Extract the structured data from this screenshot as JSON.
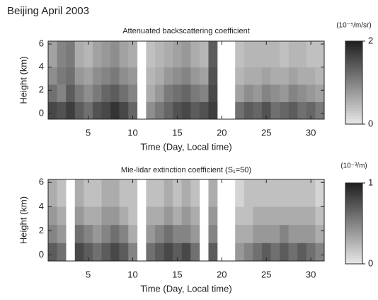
{
  "figure_title": "Beijing   April 2003",
  "chart_data": [
    {
      "type": "heatmap",
      "title": "Attenuated backscattering coefficient",
      "x_label": "Time (Day, Local time)",
      "y_label": "Height (km)",
      "colorbar_label": "(10⁻⁵/m/sr)",
      "xlim": [
        0.5,
        31.5
      ],
      "xticks": [
        5,
        10,
        15,
        20,
        25,
        30
      ],
      "ylim": [
        -0.5,
        6.25
      ],
      "yticks": [
        0,
        2,
        4,
        6
      ],
      "clim": [
        0,
        2
      ],
      "cticks": [
        0,
        2
      ],
      "xbins": [
        0.5,
        1.5,
        2.5,
        3.5,
        4.5,
        5.5,
        6.5,
        7.5,
        8.5,
        9.5,
        10.5,
        11.5,
        12.5,
        13.5,
        14.5,
        15.5,
        16.5,
        17.5,
        18.5,
        19.5,
        20.5,
        21.5,
        22.5,
        23.5,
        24.5,
        25.5,
        26.5,
        27.5,
        28.5,
        29.5,
        30.5,
        31.5
      ],
      "ybins": [
        -0.5,
        1,
        2.5,
        4,
        6.25
      ],
      "z": [
        [
          1.6,
          1.5,
          1.7,
          1.4,
          1.2,
          1.5,
          1.6,
          1.8,
          1.6,
          1.3,
          null,
          0.9,
          1.1,
          1.3,
          1.5,
          1.6,
          1.4,
          1.5,
          1.7,
          null,
          null,
          1.2,
          1.4,
          1.3,
          1.5,
          1.2,
          1.3,
          1.4,
          1.2,
          1.3,
          1.1
        ],
        [
          1.2,
          1.0,
          1.4,
          1.1,
          0.9,
          1.1,
          1.3,
          1.4,
          1.2,
          1.0,
          null,
          0.6,
          0.8,
          1.1,
          1.2,
          1.3,
          1.1,
          1.0,
          1.6,
          null,
          null,
          0.7,
          0.9,
          0.8,
          1.0,
          0.9,
          0.8,
          1.0,
          0.9,
          0.8,
          0.7
        ],
        [
          0.9,
          1.1,
          1.2,
          0.8,
          0.7,
          0.9,
          1.0,
          1.1,
          0.9,
          0.8,
          null,
          0.5,
          0.6,
          0.8,
          0.9,
          1.0,
          0.8,
          0.7,
          1.5,
          null,
          null,
          0.5,
          0.6,
          0.6,
          0.7,
          0.6,
          0.6,
          0.7,
          0.6,
          0.6,
          0.5
        ],
        [
          0.7,
          1.0,
          1.1,
          0.6,
          0.5,
          0.7,
          0.8,
          0.9,
          0.7,
          0.6,
          null,
          0.4,
          0.5,
          0.6,
          0.7,
          0.8,
          0.6,
          0.5,
          1.4,
          null,
          null,
          0.4,
          0.5,
          0.5,
          0.5,
          0.5,
          0.4,
          0.5,
          0.5,
          0.4,
          0.4
        ]
      ]
    },
    {
      "type": "heatmap",
      "title": "Mie-lidar extinction coefficient (S₁=50)",
      "x_label": "Time (Day, Local time)",
      "y_label": "Height (km)",
      "colorbar_label": "(10⁻³/m)",
      "xlim": [
        0.5,
        31.5
      ],
      "xticks": [
        5,
        10,
        15,
        20,
        25,
        30
      ],
      "ylim": [
        -0.5,
        6.25
      ],
      "yticks": [
        0,
        2,
        4,
        6
      ],
      "clim": [
        0,
        1
      ],
      "cticks": [
        0,
        1
      ],
      "xbins": [
        0.5,
        1.5,
        2.5,
        3.5,
        4.5,
        5.5,
        6.5,
        7.5,
        8.5,
        9.5,
        10.5,
        11.5,
        12.5,
        13.5,
        14.5,
        15.5,
        16.5,
        17.5,
        18.5,
        19.5,
        20.5,
        21.5,
        22.5,
        23.5,
        24.5,
        25.5,
        26.5,
        27.5,
        28.5,
        29.5,
        30.5,
        31.5
      ],
      "ybins": [
        -0.5,
        1,
        2.5,
        4,
        6.25
      ],
      "z": [
        [
          0.7,
          0.6,
          null,
          0.8,
          0.7,
          0.6,
          0.7,
          0.8,
          0.7,
          0.5,
          null,
          0.6,
          0.7,
          0.8,
          0.7,
          0.8,
          0.6,
          null,
          0.7,
          null,
          null,
          0.4,
          0.5,
          0.6,
          0.7,
          0.6,
          0.7,
          0.6,
          0.7,
          0.6,
          0.5
        ],
        [
          0.5,
          0.4,
          null,
          0.6,
          0.5,
          0.4,
          0.5,
          0.6,
          0.5,
          0.3,
          null,
          0.4,
          0.5,
          0.6,
          0.5,
          0.5,
          0.4,
          null,
          0.5,
          null,
          null,
          0.3,
          0.3,
          0.4,
          0.4,
          0.4,
          0.5,
          0.4,
          0.4,
          0.4,
          0.3
        ],
        [
          0.4,
          0.3,
          null,
          0.4,
          0.3,
          0.3,
          0.4,
          0.4,
          0.3,
          0.2,
          null,
          0.3,
          0.3,
          0.4,
          0.3,
          0.4,
          0.3,
          null,
          0.4,
          null,
          null,
          0.2,
          0.2,
          0.3,
          0.3,
          0.3,
          0.3,
          0.3,
          0.3,
          0.3,
          0.2
        ],
        [
          0.3,
          0.2,
          null,
          0.3,
          0.2,
          0.2,
          0.3,
          0.3,
          0.2,
          0.2,
          null,
          0.2,
          0.2,
          0.3,
          0.2,
          0.3,
          0.2,
          null,
          0.3,
          null,
          null,
          0.1,
          0.2,
          0.2,
          0.2,
          0.2,
          0.2,
          0.2,
          0.2,
          0.2,
          0.1
        ]
      ]
    }
  ]
}
